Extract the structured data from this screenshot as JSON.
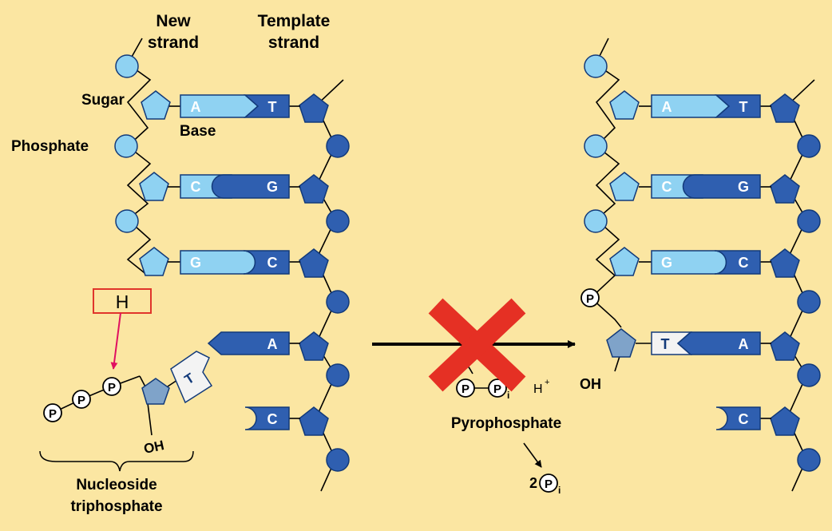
{
  "headers": {
    "new_strand": [
      "New",
      "strand"
    ],
    "template_strand": [
      "Template",
      "strand"
    ]
  },
  "labels": {
    "sugar": "Sugar",
    "phosphate": "Phosphate",
    "base": "Base",
    "h_box": "H",
    "oh": "OH",
    "oh_right": "OH",
    "nucleoside": [
      "Nucleoside",
      "triphosphate"
    ],
    "pyrophosphate": "Pyrophosphate",
    "h_plus": "H",
    "h_plus_sup": "+",
    "two_pi": "2"
  },
  "symbols": {
    "p": "P",
    "p_sub": "i"
  },
  "left_pairs": [
    {
      "new": "A",
      "template": "T"
    },
    {
      "new": "C",
      "template": "G"
    },
    {
      "new": "G",
      "template": "C"
    },
    {
      "new": "",
      "template": "A"
    },
    {
      "new": "",
      "template": "C"
    }
  ],
  "incoming_base": "T",
  "right_pairs": [
    {
      "new": "A",
      "template": "T"
    },
    {
      "new": "C",
      "template": "G"
    },
    {
      "new": "G",
      "template": "C"
    },
    {
      "new": "T",
      "template": "A"
    },
    {
      "new": "",
      "template": "C"
    }
  ],
  "colors": {
    "background": "#fbe6a2",
    "light_blue": "#8fd2f2",
    "dark_blue": "#2f5fb0",
    "outline": "#123a7a",
    "h_box_fill": "#fbe6a2",
    "h_box_border": "#e0352b",
    "arrow_pink": "#e01060",
    "cross_red": "#e53024",
    "t_fill": "#f3f3f3"
  }
}
